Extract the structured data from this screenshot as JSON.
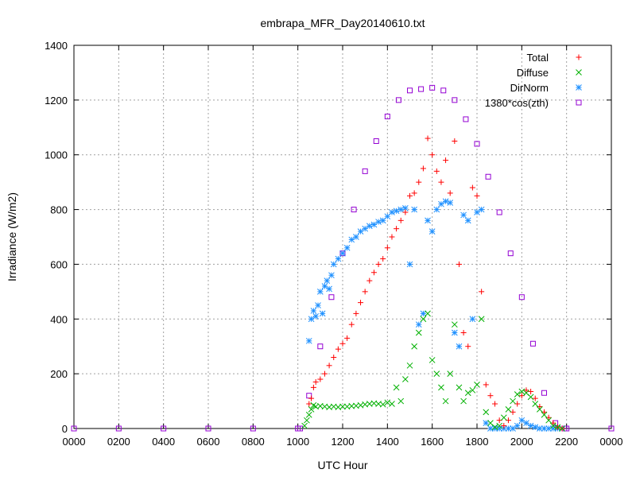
{
  "chart_data": {
    "type": "scatter",
    "title": "embrapa_MFR_Day20140610.txt",
    "xlabel": "UTC Hour",
    "ylabel": "Irradiance (W/m2)",
    "xlim": [
      0,
      2400
    ],
    "ylim": [
      0,
      1400
    ],
    "x_tick_labels": [
      "0000",
      "0200",
      "0400",
      "0600",
      "0800",
      "1000",
      "1200",
      "1400",
      "1600",
      "1800",
      "2000",
      "2200",
      "0000"
    ],
    "y_ticks": [
      0,
      200,
      400,
      600,
      800,
      1000,
      1200,
      1400
    ],
    "grid": true,
    "legend_position": "top-right",
    "series": [
      {
        "name": "1380*cos(zth)",
        "marker": "square",
        "color": "#9400d3",
        "x": [
          0,
          200,
          400,
          600,
          800,
          1000,
          1010,
          1050,
          1100,
          1150,
          1200,
          1250,
          1300,
          1350,
          1400,
          1450,
          1500,
          1550,
          1600,
          1650,
          1700,
          1750,
          1800,
          1850,
          1900,
          1950,
          2000,
          2050,
          2100,
          2150,
          2190,
          2200,
          2400
        ],
        "y": [
          0,
          0,
          0,
          0,
          0,
          0,
          0,
          120,
          300,
          480,
          640,
          800,
          940,
          1050,
          1140,
          1200,
          1235,
          1240,
          1245,
          1235,
          1200,
          1130,
          1040,
          920,
          790,
          640,
          480,
          310,
          130,
          20,
          0,
          0,
          0
        ]
      },
      {
        "name": "DirNorm",
        "marker": "asterisk",
        "color": "#1e90ff",
        "x": [
          1050,
          1060,
          1070,
          1080,
          1090,
          1100,
          1110,
          1120,
          1130,
          1140,
          1150,
          1160,
          1180,
          1200,
          1220,
          1240,
          1260,
          1280,
          1300,
          1320,
          1340,
          1360,
          1380,
          1400,
          1420,
          1440,
          1460,
          1480,
          1500,
          1520,
          1540,
          1560,
          1580,
          1600,
          1620,
          1640,
          1660,
          1680,
          1700,
          1720,
          1740,
          1760,
          1780,
          1800,
          1820,
          1840,
          1860,
          1880,
          1900,
          1920,
          1940,
          1960,
          1980,
          2000,
          2020,
          2040,
          2060,
          2080,
          2100,
          2120,
          2140,
          2160,
          2180
        ],
        "y": [
          320,
          400,
          430,
          410,
          450,
          500,
          420,
          520,
          540,
          510,
          560,
          600,
          620,
          640,
          660,
          690,
          700,
          720,
          730,
          740,
          745,
          755,
          760,
          775,
          790,
          795,
          800,
          805,
          600,
          800,
          380,
          420,
          760,
          720,
          800,
          820,
          830,
          825,
          350,
          300,
          780,
          760,
          400,
          790,
          800,
          20,
          0,
          0,
          0,
          0,
          0,
          0,
          10,
          30,
          20,
          10,
          5,
          0,
          0,
          0,
          0,
          0,
          0
        ]
      },
      {
        "name": "Total",
        "marker": "plus",
        "color": "#ff0000",
        "x": [
          1050,
          1060,
          1070,
          1080,
          1100,
          1120,
          1140,
          1160,
          1180,
          1200,
          1220,
          1240,
          1260,
          1280,
          1300,
          1320,
          1340,
          1360,
          1380,
          1400,
          1420,
          1440,
          1460,
          1480,
          1500,
          1520,
          1540,
          1560,
          1580,
          1600,
          1620,
          1640,
          1660,
          1680,
          1700,
          1720,
          1740,
          1760,
          1780,
          1800,
          1820,
          1840,
          1860,
          1880,
          1900,
          1920,
          1940,
          1960,
          1980,
          2000,
          2020,
          2040,
          2060,
          2080,
          2100,
          2120,
          2140,
          2160,
          2180
        ],
        "y": [
          90,
          110,
          150,
          170,
          180,
          200,
          230,
          260,
          290,
          310,
          330,
          380,
          420,
          460,
          500,
          540,
          570,
          600,
          620,
          660,
          700,
          730,
          760,
          790,
          850,
          860,
          900,
          950,
          1060,
          1000,
          940,
          900,
          980,
          860,
          1050,
          600,
          350,
          300,
          880,
          850,
          500,
          160,
          120,
          90,
          30,
          10,
          30,
          60,
          90,
          120,
          140,
          135,
          110,
          80,
          60,
          40,
          20,
          5,
          0
        ]
      },
      {
        "name": "Diffuse",
        "marker": "cross",
        "color": "#00b000",
        "x": [
          1030,
          1040,
          1050,
          1060,
          1070,
          1080,
          1100,
          1120,
          1140,
          1160,
          1180,
          1200,
          1220,
          1240,
          1260,
          1280,
          1300,
          1320,
          1340,
          1360,
          1380,
          1400,
          1420,
          1440,
          1460,
          1480,
          1500,
          1520,
          1540,
          1560,
          1580,
          1600,
          1620,
          1640,
          1660,
          1680,
          1700,
          1720,
          1740,
          1760,
          1780,
          1800,
          1820,
          1840,
          1860,
          1880,
          1900,
          1920,
          1940,
          1960,
          1980,
          2000,
          2020,
          2040,
          2060,
          2080,
          2100,
          2120,
          2140,
          2160,
          2180
        ],
        "y": [
          10,
          30,
          50,
          70,
          85,
          80,
          82,
          80,
          78,
          80,
          78,
          80,
          80,
          82,
          83,
          85,
          88,
          90,
          92,
          90,
          88,
          95,
          90,
          150,
          100,
          180,
          230,
          300,
          350,
          400,
          420,
          250,
          200,
          150,
          100,
          200,
          380,
          150,
          100,
          130,
          140,
          160,
          400,
          60,
          20,
          5,
          10,
          40,
          70,
          100,
          125,
          135,
          130,
          115,
          90,
          70,
          50,
          30,
          10,
          5,
          0
        ]
      }
    ]
  }
}
